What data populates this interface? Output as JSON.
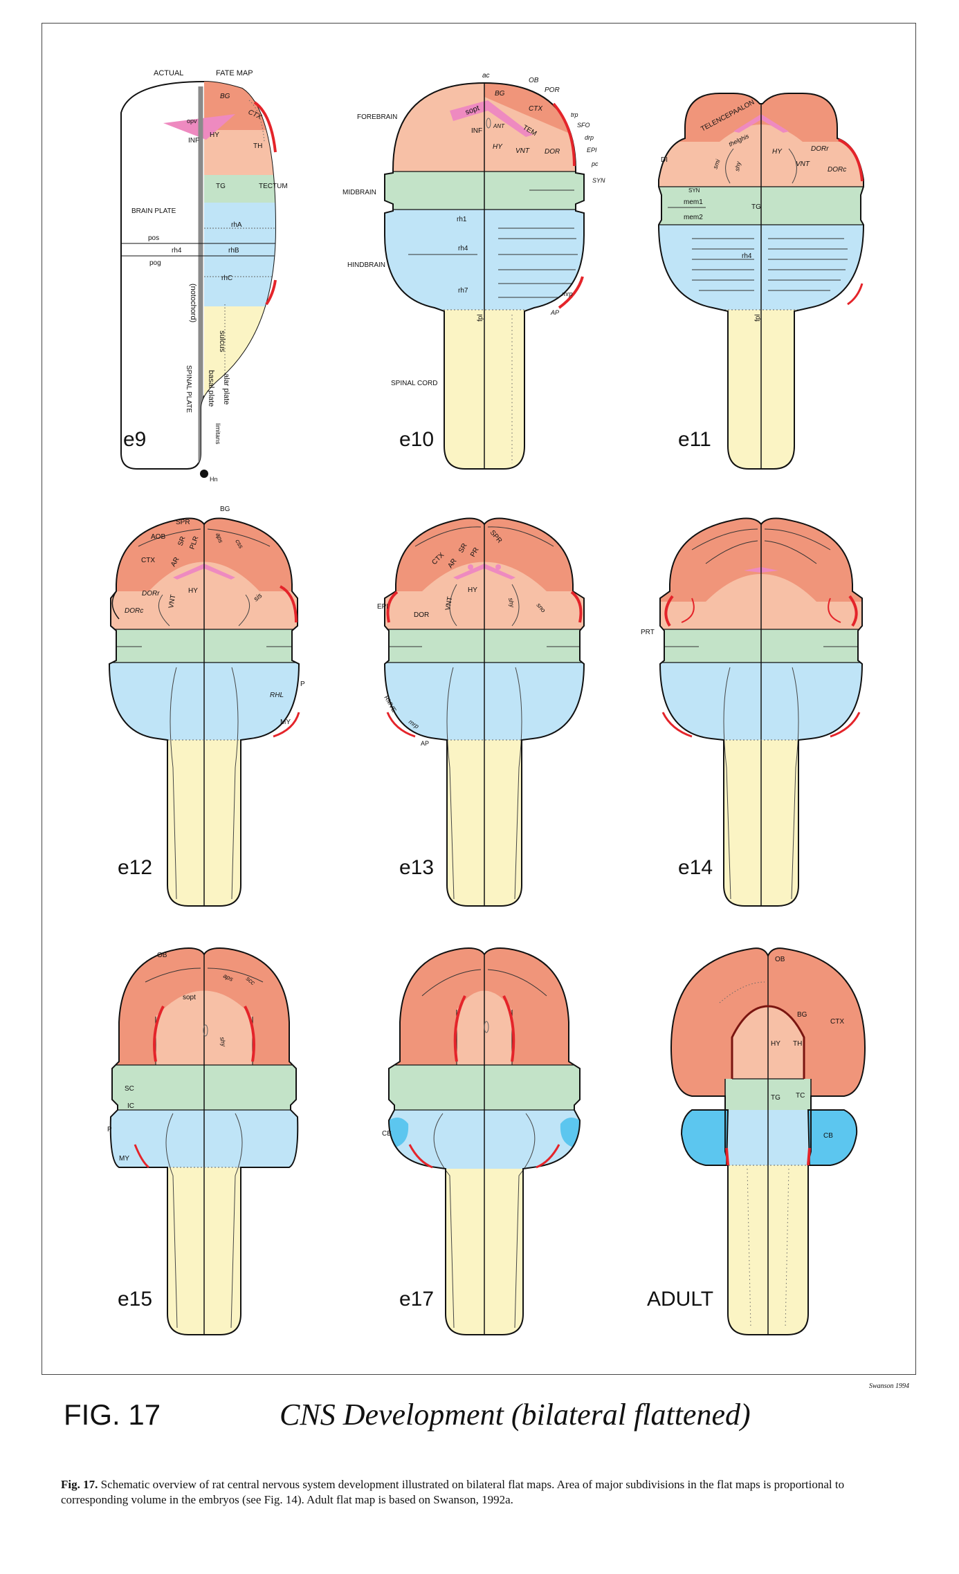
{
  "colors": {
    "telencephalon": "#f0957a",
    "diencephalon": "#f7c0a6",
    "midbrain": "#c3e3c8",
    "hindbrain": "#bfe4f7",
    "cerebellum": "#5cc6ef",
    "spinal": "#fbf4c4",
    "stripe": "#e4242a",
    "pink": "#ee8ac0"
  },
  "panels": [
    {
      "stage": "e9"
    },
    {
      "stage": "e10"
    },
    {
      "stage": "e11"
    },
    {
      "stage": "e12"
    },
    {
      "stage": "e13"
    },
    {
      "stage": "e14"
    },
    {
      "stage": "e15"
    },
    {
      "stage": "e17"
    },
    {
      "stage": "ADULT"
    }
  ],
  "e9_labels": {
    "actual": "ACTUAL",
    "fate_map": "FATE MAP",
    "bg": "BG",
    "ctx": "CTX",
    "opv": "opv",
    "hy": "HY",
    "inf": "INF",
    "th": "TH",
    "tg": "TG",
    "tectum": "TECTUM",
    "brain_plate": "BRAIN  PLATE",
    "rha": "rhA",
    "pos": "pos",
    "rh4": "rh4",
    "rhb": "rhB",
    "pog": "pog",
    "rhc": "rhC",
    "notochord": "(notochord)",
    "sulcus": "sulcus",
    "alar_plate": "alar plate",
    "basal_plate": "basal plate",
    "limitans": "limitans",
    "spinal_plate": "SPINAL   PLATE",
    "hn": "Hn"
  },
  "e10_labels": {
    "ac": "ac",
    "ob": "OB",
    "por": "POR",
    "forebrain": "FOREBRAIN",
    "bg": "BG",
    "ctx": "CTX",
    "sopt": "sopt",
    "trp": "trp",
    "sfo": "SFO",
    "ant": "ANT",
    "tem": "TEM",
    "drp": "drp",
    "inf": "INF",
    "epi": "EPI",
    "hy": "HY",
    "vnt": "VNT",
    "dor": "DOR",
    "pc": "pc",
    "syn": "SYN",
    "midbrain": "MIDBRAIN",
    "rh1": "rh1",
    "hindbrain": "HINDBRAIN",
    "rh4": "rh4",
    "rh7": "rh7",
    "mrp": "mrp",
    "ap": "AP",
    "fpl": "fpl",
    "spinal_cord": "SPINAL   CORD"
  },
  "e11_labels": {
    "telencephalon": "TELENCEPAALON",
    "thelghis": "thelghis",
    "di": "DI",
    "smi": "smi",
    "shy": "shy",
    "hy": "HY",
    "vnt": "VNT",
    "dorr": "DORr",
    "dorc": "DORc",
    "syn": "SYN",
    "mem1": "mem1",
    "tg": "TG",
    "mem2": "mem2",
    "rh4": "rh4",
    "fpl": "fpl"
  },
  "e12_labels": {
    "bg": "BG",
    "spr": "SPR",
    "aob": "AOB",
    "sr": "SR",
    "plr": "PLR",
    "aps": "aps",
    "css": "css",
    "ctx": "CTX",
    "ar": "AR",
    "hy": "HY",
    "dorr": "DORr",
    "vnt": "VNT",
    "dorc": "DORc",
    "sis": "sis",
    "p": "P",
    "rhl": "RHL",
    "my": "MY"
  },
  "e13_labels": {
    "spr": "SPR",
    "sr": "SR",
    "ctx": "CTX",
    "pr": "PR",
    "ar": "AR",
    "epi": "EPI",
    "hy": "HY",
    "dor": "DOR",
    "vnt": "VNT",
    "shy": "shy",
    "sno": "sno",
    "rmve": "RMVE",
    "mrp": "mrp",
    "ap": "AP"
  },
  "e14_labels": {
    "prt": "PRT"
  },
  "e15_labels": {
    "ob": "OB",
    "aps": "aps",
    "scc": "scc",
    "sopt": "sopt",
    "shy": "shy",
    "sc": "SC",
    "ic": "IC",
    "p": "P",
    "my": "MY"
  },
  "e17_labels": {
    "cb": "CB"
  },
  "adult_labels": {
    "ob": "OB",
    "bg": "BG",
    "ctx": "CTX",
    "hy": "HY",
    "th": "TH",
    "tg": "TG",
    "tc": "TC",
    "cb": "CB"
  },
  "credit": "Swanson 1994",
  "fig_number": "FIG. 17",
  "fig_title": "CNS Development (bilateral flattened)",
  "caption_lead": "Fig. 17.",
  "caption_text": " Schematic overview of rat central nervous system development illustrated on bilateral flat maps. Area of major subdivisions in the flat maps is proportional to corresponding volume in the embryos (see Fig. 14). Adult flat map is based on Swanson, 1992a."
}
